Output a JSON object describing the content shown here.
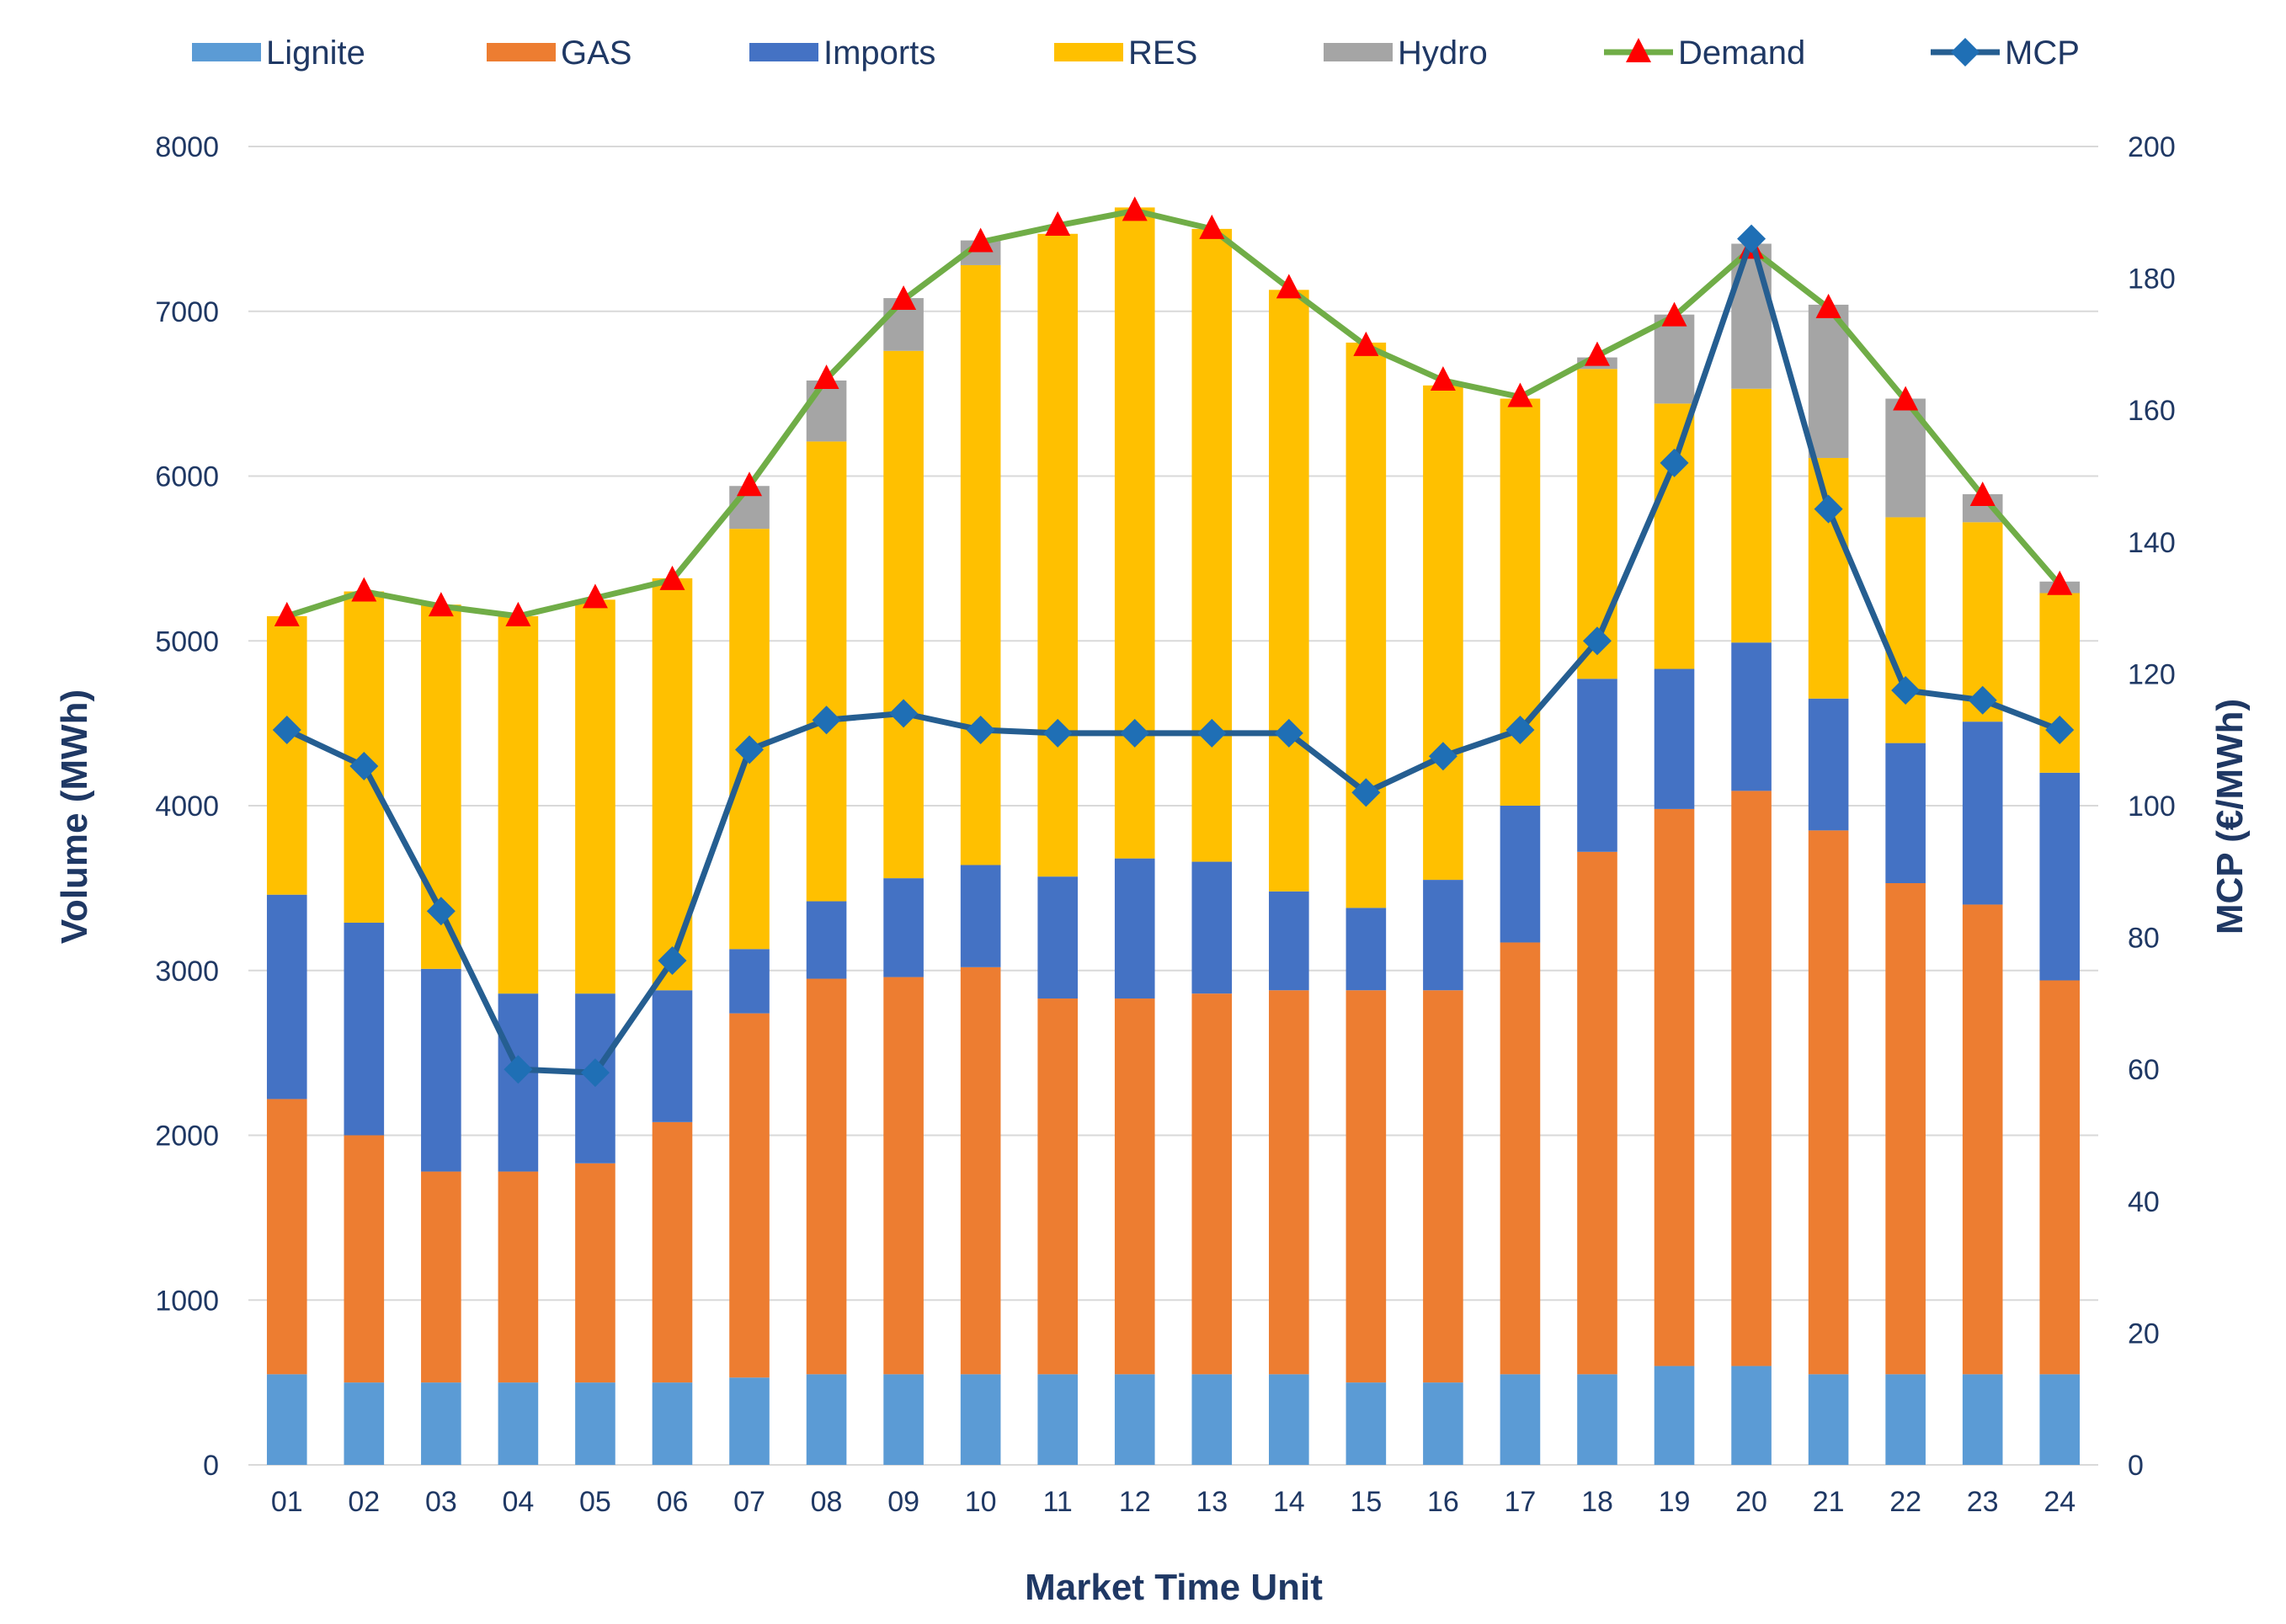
{
  "chart_data": {
    "type": "bar",
    "stacked": true,
    "categories": [
      "01",
      "02",
      "03",
      "04",
      "05",
      "06",
      "07",
      "08",
      "09",
      "10",
      "11",
      "12",
      "13",
      "14",
      "15",
      "16",
      "17",
      "18",
      "19",
      "20",
      "21",
      "22",
      "23",
      "24"
    ],
    "series": [
      {
        "name": "Lignite",
        "type": "bar",
        "axis": "left",
        "color": "#5b9bd5",
        "values": [
          550,
          500,
          500,
          500,
          500,
          500,
          530,
          550,
          550,
          550,
          550,
          550,
          550,
          550,
          500,
          500,
          550,
          550,
          600,
          600,
          550,
          550,
          550,
          550
        ]
      },
      {
        "name": "GAS",
        "type": "bar",
        "axis": "left",
        "color": "#ed7d31",
        "values": [
          1670,
          1500,
          1280,
          1280,
          1330,
          1580,
          2210,
          2400,
          2410,
          2470,
          2280,
          2280,
          2310,
          2330,
          2380,
          2380,
          2620,
          3170,
          3380,
          3490,
          3300,
          2980,
          2850,
          2390
        ]
      },
      {
        "name": "Imports",
        "type": "bar",
        "axis": "left",
        "color": "#4472c4",
        "values": [
          1240,
          1290,
          1230,
          1080,
          1030,
          800,
          390,
          470,
          600,
          620,
          740,
          850,
          800,
          600,
          500,
          670,
          830,
          1050,
          850,
          900,
          800,
          850,
          1110,
          1260
        ]
      },
      {
        "name": "RES",
        "type": "bar",
        "axis": "left",
        "color": "#ffc000",
        "values": [
          1690,
          2010,
          2210,
          2290,
          2390,
          2500,
          2550,
          2790,
          3200,
          3640,
          3900,
          3950,
          3840,
          3650,
          3430,
          3000,
          2470,
          1880,
          1610,
          1540,
          1460,
          1370,
          1210,
          1090
        ]
      },
      {
        "name": "Hydro",
        "type": "bar",
        "axis": "left",
        "color": "#a5a5a5",
        "values": [
          0,
          0,
          0,
          0,
          0,
          0,
          260,
          370,
          320,
          150,
          0,
          0,
          0,
          0,
          0,
          0,
          0,
          70,
          540,
          880,
          930,
          720,
          170,
          70
        ]
      },
      {
        "name": "Demand",
        "type": "line",
        "axis": "left",
        "color": "#70ad47",
        "marker": "triangle",
        "marker_color": "#ff0000",
        "values": [
          5150,
          5300,
          5210,
          5150,
          5260,
          5370,
          5940,
          6590,
          7070,
          7420,
          7520,
          7610,
          7500,
          7140,
          6790,
          6580,
          6480,
          6730,
          6970,
          7380,
          7020,
          6460,
          5880,
          5340
        ]
      },
      {
        "name": "MCP",
        "type": "line",
        "axis": "right",
        "color": "#255e91",
        "marker": "diamond",
        "marker_color": "#1f6fb5",
        "values": [
          111.5,
          106,
          84,
          60,
          59.5,
          76.5,
          108.5,
          113,
          114,
          111.5,
          111,
          111,
          111,
          111,
          102,
          107.5,
          111.5,
          125,
          152,
          186,
          145,
          117.5,
          116,
          111.5
        ]
      }
    ],
    "xlabel": "Market Time Unit",
    "ylabel": "Volume (MWh)",
    "y2label": "MCP (€/MWh)",
    "ylim": [
      0,
      8000
    ],
    "y2lim": [
      0,
      200
    ],
    "yticks": [
      "0",
      "1000",
      "2000",
      "3000",
      "4000",
      "5000",
      "6000",
      "7000",
      "8000"
    ],
    "y2ticks": [
      "0",
      "20",
      "40",
      "60",
      "80",
      "100",
      "120",
      "140",
      "160",
      "180",
      "200"
    ],
    "grid": true,
    "legend_position": "top"
  }
}
